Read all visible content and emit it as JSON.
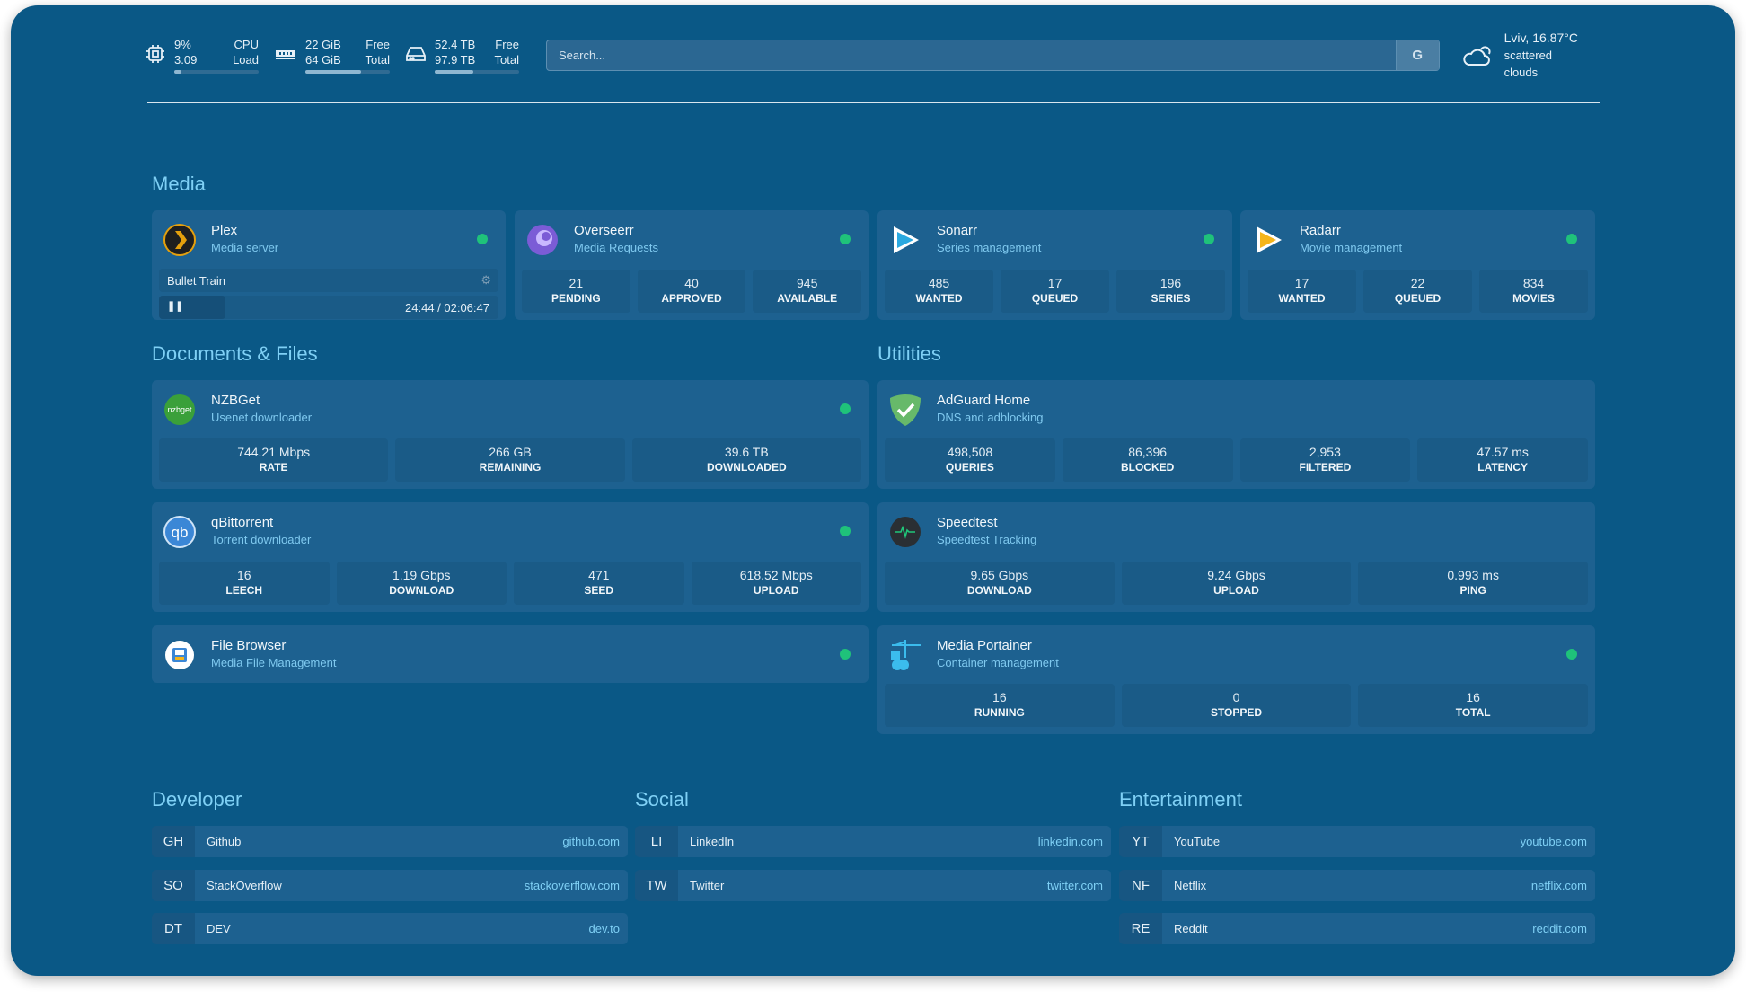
{
  "header": {
    "cpu": {
      "icon": "cpu-icon",
      "value1": "9%",
      "label1": "CPU",
      "value2": "3.09",
      "label2": "Load",
      "fill": 0.09
    },
    "memory": {
      "icon": "memory-icon",
      "value1": "22 GiB",
      "label1": "Free",
      "value2": "64 GiB",
      "label2": "Total",
      "fill": 0.66
    },
    "disk": {
      "icon": "disk-icon",
      "value1": "52.4 TB",
      "label1": "Free",
      "value2": "97.9 TB",
      "label2": "Total",
      "fill": 0.46
    },
    "search_placeholder": "Search...",
    "search_engine": "G",
    "weather": {
      "icon": "cloud-sun-icon",
      "location": "Lviv, 16.87°C",
      "condition": "scattered clouds"
    }
  },
  "sections": {
    "media": "Media",
    "documents": "Documents & Files",
    "utilities": "Utilities",
    "developer": "Developer",
    "social": "Social",
    "entertainment": "Entertainment"
  },
  "media": [
    {
      "title": "Plex",
      "subtitle": "Media server",
      "status": "online",
      "now_playing": {
        "title": "Bullet Train",
        "time": "24:44 / 02:06:47",
        "progress": 0.195
      }
    },
    {
      "title": "Overseerr",
      "subtitle": "Media Requests",
      "status": "online",
      "stats": [
        {
          "v": "21",
          "l": "PENDING"
        },
        {
          "v": "40",
          "l": "APPROVED"
        },
        {
          "v": "945",
          "l": "AVAILABLE"
        }
      ]
    },
    {
      "title": "Sonarr",
      "subtitle": "Series management",
      "status": "online",
      "stats": [
        {
          "v": "485",
          "l": "WANTED"
        },
        {
          "v": "17",
          "l": "QUEUED"
        },
        {
          "v": "196",
          "l": "SERIES"
        }
      ]
    },
    {
      "title": "Radarr",
      "subtitle": "Movie management",
      "status": "online",
      "stats": [
        {
          "v": "17",
          "l": "WANTED"
        },
        {
          "v": "22",
          "l": "QUEUED"
        },
        {
          "v": "834",
          "l": "MOVIES"
        }
      ]
    }
  ],
  "documents": [
    {
      "title": "NZBGet",
      "subtitle": "Usenet downloader",
      "icon_text": "nzbget",
      "stats": [
        {
          "v": "744.21 Mbps",
          "l": "RATE"
        },
        {
          "v": "266 GB",
          "l": "REMAINING"
        },
        {
          "v": "39.6 TB",
          "l": "DOWNLOADED"
        }
      ]
    },
    {
      "title": "qBittorrent",
      "subtitle": "Torrent downloader",
      "icon_text": "qb",
      "stats": [
        {
          "v": "16",
          "l": "LEECH"
        },
        {
          "v": "1.19 Gbps",
          "l": "DOWNLOAD"
        },
        {
          "v": "471",
          "l": "SEED"
        },
        {
          "v": "618.52 Mbps",
          "l": "UPLOAD"
        }
      ]
    },
    {
      "title": "File Browser",
      "subtitle": "Media File Management"
    }
  ],
  "utilities": [
    {
      "title": "AdGuard Home",
      "subtitle": "DNS and adblocking",
      "stats": [
        {
          "v": "498,508",
          "l": "QUERIES"
        },
        {
          "v": "86,396",
          "l": "BLOCKED"
        },
        {
          "v": "2,953",
          "l": "FILTERED"
        },
        {
          "v": "47.57 ms",
          "l": "LATENCY"
        }
      ]
    },
    {
      "title": "Speedtest",
      "subtitle": "Speedtest Tracking",
      "stats": [
        {
          "v": "9.65 Gbps",
          "l": "DOWNLOAD"
        },
        {
          "v": "9.24 Gbps",
          "l": "UPLOAD"
        },
        {
          "v": "0.993 ms",
          "l": "PING"
        }
      ]
    },
    {
      "title": "Media Portainer",
      "subtitle": "Container management",
      "stats": [
        {
          "v": "16",
          "l": "RUNNING"
        },
        {
          "v": "0",
          "l": "STOPPED"
        },
        {
          "v": "16",
          "l": "TOTAL"
        }
      ]
    }
  ],
  "links": {
    "developer": [
      {
        "a": "GH",
        "n": "Github",
        "u": "github.com"
      },
      {
        "a": "SO",
        "n": "StackOverflow",
        "u": "stackoverflow.com"
      },
      {
        "a": "DT",
        "n": "DEV",
        "u": "dev.to"
      }
    ],
    "social": [
      {
        "a": "LI",
        "n": "LinkedIn",
        "u": "linkedin.com"
      },
      {
        "a": "TW",
        "n": "Twitter",
        "u": "twitter.com"
      }
    ],
    "entertainment": [
      {
        "a": "YT",
        "n": "YouTube",
        "u": "youtube.com"
      },
      {
        "a": "NF",
        "n": "Netflix",
        "u": "netflix.com"
      },
      {
        "a": "RE",
        "n": "Reddit",
        "u": "reddit.com"
      }
    ]
  },
  "colors": {
    "background": "#0a5886",
    "card": "#1d6190",
    "accent": "#7fd0f5",
    "status_online": "#1fc27a"
  }
}
